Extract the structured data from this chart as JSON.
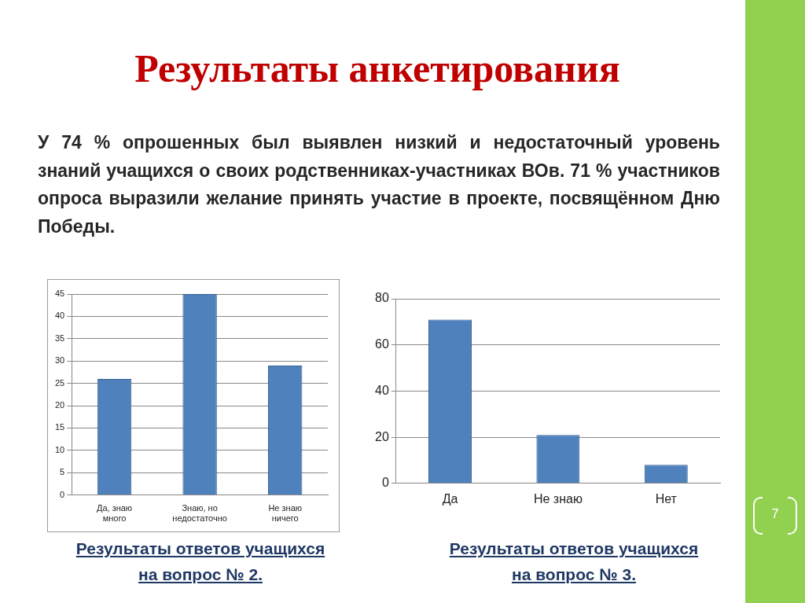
{
  "chart_data": [
    {
      "type": "other",
      "title": "Результаты анкетирования",
      "subtitle": "У 74 % опрошенных был выявлен низкий и недостаточный уровень знаний учащихся о своих родственниках-участниках ВОв. 71 % участников опроса выразили желание принять участие в проекте, посвящённом Дню Победы.",
      "annotations": [
        "7"
      ]
    },
    {
      "type": "bar",
      "categories": [
        "Да, знаю много",
        "Знаю, но недостаточно",
        "Не знаю ничего"
      ],
      "values": [
        26,
        45,
        29
      ],
      "color": "#4f81bd",
      "ylim": [
        0,
        45
      ],
      "yticks": [
        0,
        5,
        10,
        15,
        20,
        25,
        30,
        35,
        40,
        45
      ],
      "grid": "y",
      "annotations": [
        "Результаты ответов учащихся на вопрос  № 2."
      ]
    },
    {
      "type": "bar",
      "categories": [
        "Да",
        "Не знаю",
        "Нет"
      ],
      "values": [
        71,
        21,
        8
      ],
      "color": "#4f81bd",
      "ylim": [
        0,
        80
      ],
      "yticks": [
        0,
        20,
        40,
        60,
        80
      ],
      "grid": "y",
      "annotations": [
        "Результаты ответов учащихся на вопрос  № 3."
      ]
    }
  ]
}
